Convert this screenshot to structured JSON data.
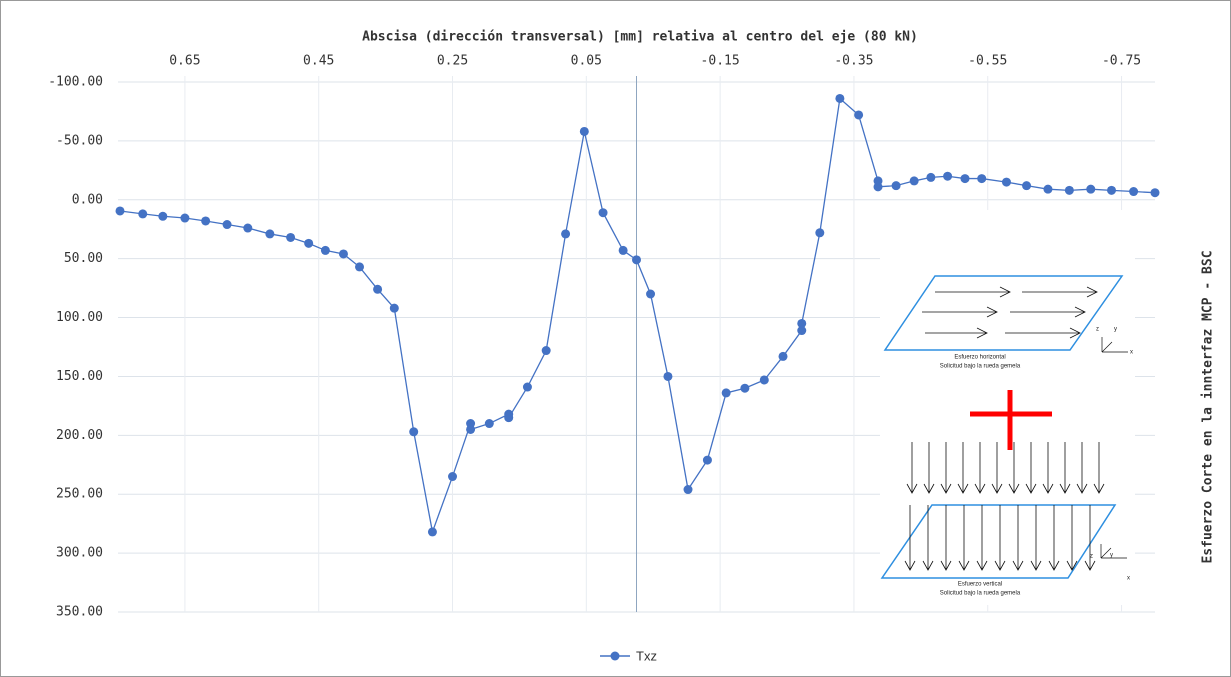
{
  "chart_data": {
    "type": "line",
    "title": "Abscisa (dirección transversal) [mm] relativa al centro del eje (80 kN)",
    "y_label": "Esfuerzo Corte en la innterfaz MCP - BSC",
    "x": [
      0.747,
      0.713,
      0.683,
      0.65,
      0.619,
      0.587,
      0.556,
      0.523,
      0.492,
      0.465,
      0.44,
      0.413,
      0.389,
      0.362,
      0.337,
      0.308,
      0.28,
      0.25,
      0.223,
      0.223,
      0.195,
      0.166,
      0.166,
      0.138,
      0.11,
      0.081,
      0.053,
      0.025,
      -0.005,
      -0.025,
      -0.046,
      -0.072,
      -0.102,
      -0.131,
      -0.159,
      -0.187,
      -0.216,
      -0.244,
      -0.272,
      -0.272,
      -0.299,
      -0.329,
      -0.357,
      -0.386,
      -0.386,
      -0.413,
      -0.44,
      -0.465,
      -0.49,
      -0.516,
      -0.541,
      -0.578,
      -0.608,
      -0.64,
      -0.672,
      -0.704,
      -0.735,
      -0.768,
      -0.8
    ],
    "series": [
      {
        "name": "Txz",
        "color": "#4472c4",
        "values": [
          9.5,
          12,
          14,
          15.5,
          18,
          21,
          24,
          29,
          32,
          37,
          43,
          46,
          57,
          76,
          92,
          197,
          282,
          235,
          190,
          195,
          190,
          182,
          185,
          159,
          128,
          29,
          -58,
          11,
          43,
          51,
          80,
          150,
          246,
          221,
          164,
          160,
          153,
          133,
          111,
          105,
          28,
          -86,
          -72,
          -16,
          -11,
          -12,
          -16,
          -19,
          -20,
          -18,
          -18,
          -15,
          -12,
          -9,
          -8,
          -9,
          -8,
          -7,
          -6
        ]
      }
    ],
    "xlim": [
      0.75,
      -0.8
    ],
    "xticks": [
      0.65,
      0.45,
      0.25,
      0.05,
      -0.15,
      -0.35,
      -0.55,
      -0.75
    ],
    "ylim": [
      -100,
      350
    ],
    "yticks": [
      {
        "value": -100,
        "label": "-100.00"
      },
      {
        "value": -50,
        "label": "-50.00"
      },
      {
        "value": 0,
        "label": "0.00"
      },
      {
        "value": 50,
        "label": "50.00"
      },
      {
        "value": 100,
        "label": "100.00"
      },
      {
        "value": 150,
        "label": "150.00"
      },
      {
        "value": 200,
        "label": "200.00"
      },
      {
        "value": 250,
        "label": "250.00"
      },
      {
        "value": 300,
        "label": "300.00"
      },
      {
        "value": 350,
        "label": "350.00"
      }
    ],
    "y_inverted": true,
    "reference_x": -0.025,
    "grid": true,
    "legend": "bottom",
    "annotations": [
      "Esfuerzo horizontal",
      "Solicitud bajo la rueda gemela",
      "Esfuerzo vertical",
      "Solicitud bajo la rueda gemela"
    ],
    "inset_axes": [
      "z",
      "y",
      "x"
    ]
  }
}
